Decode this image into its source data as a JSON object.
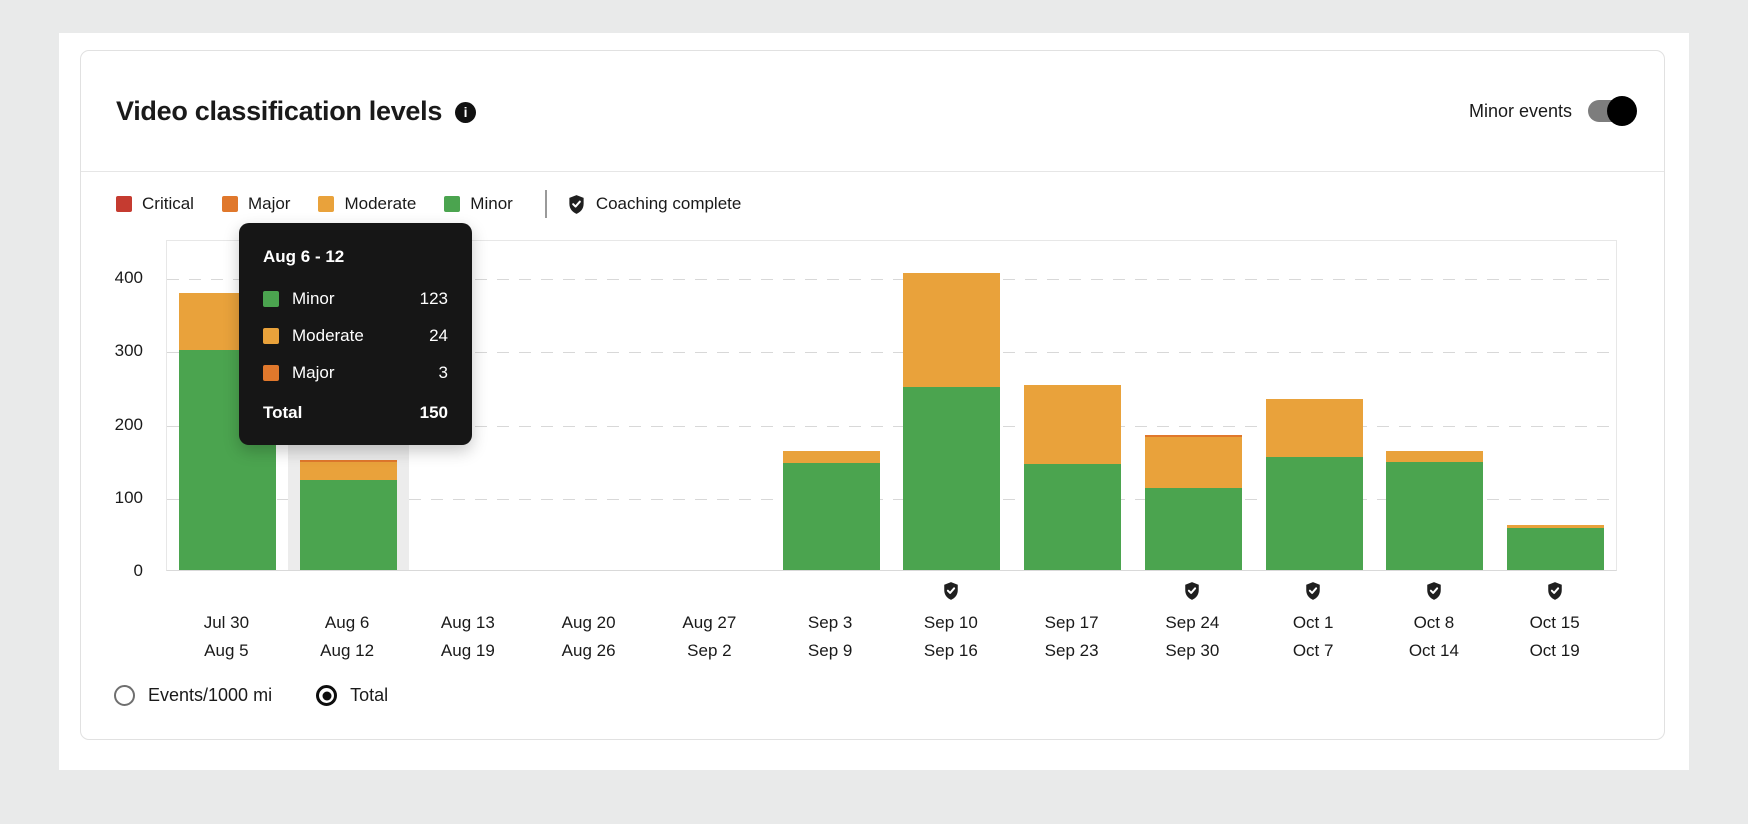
{
  "header": {
    "title": "Video classification levels",
    "toggle_label": "Minor events",
    "toggle_state": "on"
  },
  "legend": {
    "items": [
      {
        "label": "Critical",
        "color": "#c53b30"
      },
      {
        "label": "Major",
        "color": "#e0782c"
      },
      {
        "label": "Moderate",
        "color": "#e9a23b"
      },
      {
        "label": "Minor",
        "color": "#4ba44f"
      }
    ],
    "coaching_label": "Coaching complete"
  },
  "tooltip": {
    "title": "Aug 6 - 12",
    "rows": [
      {
        "label": "Minor",
        "value": 123,
        "color": "#4ba44f"
      },
      {
        "label": "Moderate",
        "value": 24,
        "color": "#e9a23b"
      },
      {
        "label": "Major",
        "value": 3,
        "color": "#e0782c"
      }
    ],
    "total_label": "Total",
    "total_value": 150
  },
  "chart_data": {
    "type": "bar",
    "stacked": true,
    "title": "Video classification levels",
    "categories": [
      [
        "Jul 30",
        "Aug 5"
      ],
      [
        "Aug 6",
        "Aug 12"
      ],
      [
        "Aug 13",
        "Aug 19"
      ],
      [
        "Aug 20",
        "Aug 26"
      ],
      [
        "Aug 27",
        "Sep 2"
      ],
      [
        "Sep 3",
        "Sep 9"
      ],
      [
        "Sep 10",
        "Sep 16"
      ],
      [
        "Sep 17",
        "Sep 23"
      ],
      [
        "Sep 24",
        "Sep 30"
      ],
      [
        "Oct 1",
        "Oct 7"
      ],
      [
        "Oct 8",
        "Oct 14"
      ],
      [
        "Oct 15",
        "Oct 19"
      ]
    ],
    "series": [
      {
        "name": "Minor",
        "color": "#4ba44f",
        "values": [
          300,
          123,
          0,
          0,
          0,
          146,
          250,
          145,
          112,
          154,
          148,
          57
        ]
      },
      {
        "name": "Moderate",
        "color": "#e9a23b",
        "values": [
          78,
          24,
          0,
          0,
          0,
          17,
          155,
          108,
          70,
          79,
          14,
          5
        ]
      },
      {
        "name": "Major",
        "color": "#e0782c",
        "values": [
          0,
          3,
          0,
          0,
          0,
          0,
          0,
          0,
          3,
          0,
          0,
          0
        ]
      },
      {
        "name": "Critical",
        "color": "#c53b30",
        "values": [
          0,
          0,
          0,
          0,
          0,
          0,
          0,
          0,
          0,
          0,
          0,
          0
        ]
      }
    ],
    "stack_order": [
      "Minor",
      "Moderate",
      "Major",
      "Critical"
    ],
    "totals": [
      378,
      150,
      0,
      0,
      0,
      163,
      405,
      253,
      185,
      233,
      162,
      62
    ],
    "coaching_complete": [
      false,
      false,
      false,
      false,
      false,
      false,
      true,
      false,
      true,
      true,
      true,
      true
    ],
    "highlighted_index": 1,
    "y_ticks": [
      0,
      100,
      200,
      300,
      400
    ],
    "ylim": [
      0,
      452
    ],
    "xlabel": "",
    "ylabel": "",
    "grid": "dashed-horizontal",
    "legend_position": "top-left"
  },
  "controls": {
    "radios": [
      {
        "label": "Events/1000 mi",
        "selected": false
      },
      {
        "label": "Total",
        "selected": true
      }
    ]
  }
}
